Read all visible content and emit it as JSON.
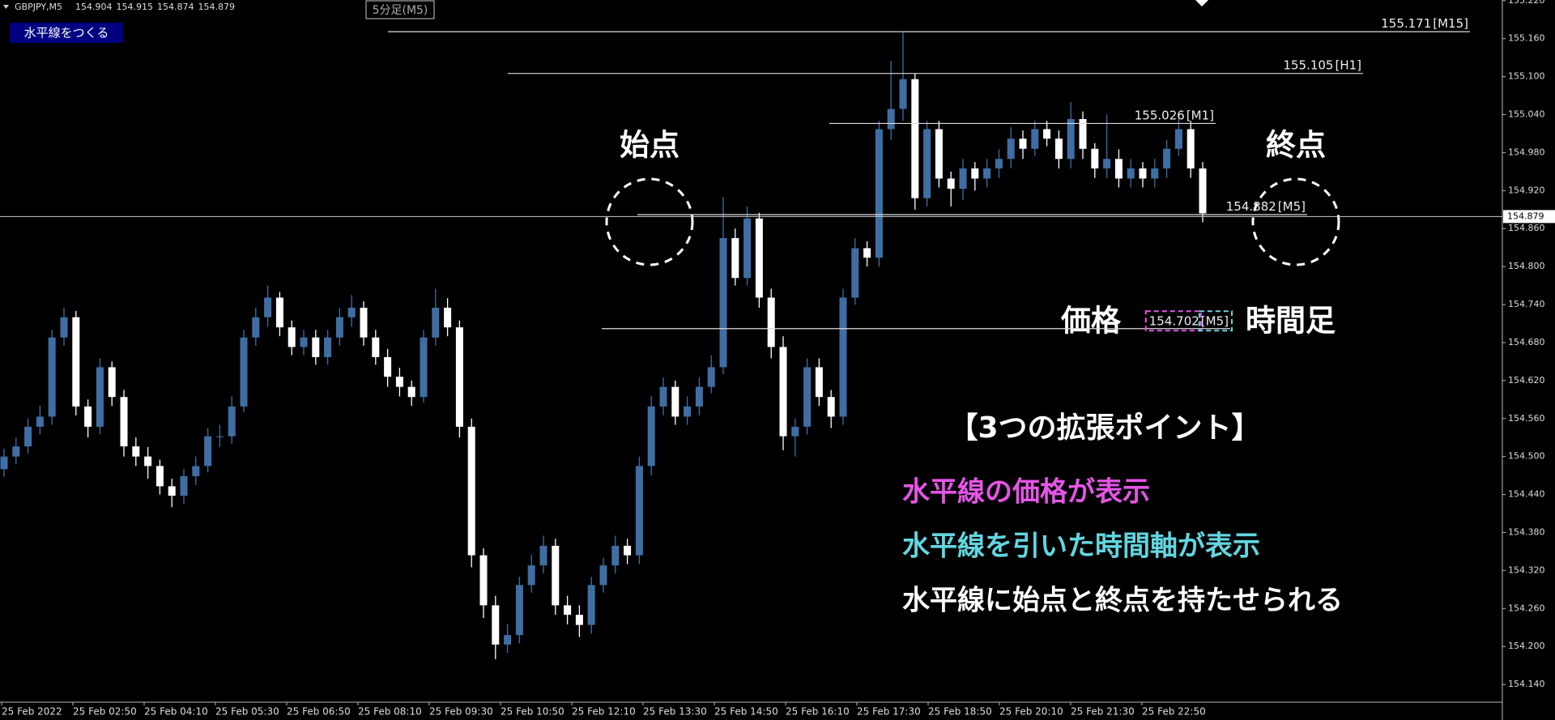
{
  "header": {
    "symbol": "GBPJPY,M5",
    "ohlc": [
      154.904,
      154.915,
      154.874,
      154.879
    ],
    "button": "水平線をつくる",
    "tag": "5分足(M5)"
  },
  "annotations": {
    "start": "始点",
    "end": "終点",
    "price": "価格",
    "timeframe": "時間足",
    "heading": "【3つの拡張ポイント】",
    "points": [
      {
        "text": "水平線の価格が表示",
        "color": "#e455e6"
      },
      {
        "text": "水平線を引いた時間軸が表示",
        "color": "#62d6e0"
      },
      {
        "text": "水平線に始点と終点を持たせられる",
        "color": "#ffffff"
      }
    ]
  },
  "chart_data": {
    "type": "candlestick",
    "up_color": "#3f6ea5",
    "down_color": "#ffffff",
    "ylim": [
      154.112,
      155.221
    ],
    "yticks": [
      {
        "value": 154.14,
        "label": "154.140"
      },
      {
        "value": 154.2,
        "label": "154.200"
      },
      {
        "value": 154.26,
        "label": "154.260"
      },
      {
        "value": 154.32,
        "label": "154.320"
      },
      {
        "value": 154.38,
        "label": "154.380"
      },
      {
        "value": 154.44,
        "label": "154.440"
      },
      {
        "value": 154.5,
        "label": "154.500"
      },
      {
        "value": 154.56,
        "label": "154.560"
      },
      {
        "value": 154.62,
        "label": "154.620"
      },
      {
        "value": 154.68,
        "label": "154.680"
      },
      {
        "value": 154.74,
        "label": "154.740"
      },
      {
        "value": 154.8,
        "label": "154.800"
      },
      {
        "value": 154.86,
        "label": "154.860"
      },
      {
        "value": 154.92,
        "label": "154.920"
      },
      {
        "value": 154.98,
        "label": "154.980"
      },
      {
        "value": 155.04,
        "label": "155.040"
      },
      {
        "value": 155.1,
        "label": "155.100"
      },
      {
        "value": 155.16,
        "label": "155.160"
      },
      {
        "value": 155.22,
        "label": "155.220"
      }
    ],
    "xlabels": [
      "25 Feb 2022",
      "25 Feb 02:50",
      "25 Feb 04:10",
      "25 Feb 05:30",
      "25 Feb 06:50",
      "25 Feb 08:10",
      "25 Feb 09:30",
      "25 Feb 10:50",
      "25 Feb 12:10",
      "25 Feb 13:30",
      "25 Feb 14:50",
      "25 Feb 16:10",
      "25 Feb 17:30",
      "25 Feb 18:50",
      "25 Feb 20:10",
      "25 Feb 21:30",
      "25 Feb 22:50"
    ],
    "current_price": 154.879,
    "hlines": [
      {
        "price": 155.171,
        "timeframe": "[M15]"
      },
      {
        "price": 155.105,
        "timeframe": "[H1]"
      },
      {
        "price": 155.026,
        "timeframe": "[M1]"
      },
      {
        "price": 154.882,
        "timeframe": "[M5]"
      },
      {
        "price": 154.702,
        "timeframe": "[M5]"
      }
    ],
    "candles": [
      [
        154.48,
        154.512,
        154.468,
        154.5
      ],
      [
        154.5,
        154.53,
        154.488,
        154.516
      ],
      [
        154.516,
        154.56,
        154.505,
        154.547
      ],
      [
        154.547,
        154.58,
        154.535,
        154.563
      ],
      [
        154.563,
        154.7,
        154.55,
        154.688
      ],
      [
        154.688,
        154.735,
        154.675,
        154.72
      ],
      [
        154.72,
        154.73,
        154.565,
        154.579
      ],
      [
        154.579,
        154.59,
        154.53,
        154.547
      ],
      [
        154.547,
        154.655,
        154.535,
        154.641
      ],
      [
        154.641,
        154.65,
        154.58,
        154.594
      ],
      [
        154.594,
        154.605,
        154.5,
        154.516
      ],
      [
        154.516,
        154.53,
        154.485,
        154.5
      ],
      [
        154.5,
        154.515,
        154.465,
        154.485
      ],
      [
        154.485,
        154.495,
        154.44,
        154.453
      ],
      [
        154.453,
        154.465,
        154.42,
        154.438
      ],
      [
        154.438,
        154.48,
        154.425,
        154.469
      ],
      [
        154.469,
        154.5,
        154.455,
        154.485
      ],
      [
        154.485,
        154.545,
        154.475,
        154.532
      ],
      [
        154.532,
        154.55,
        154.515,
        154.532
      ],
      [
        154.532,
        154.595,
        154.52,
        154.579
      ],
      [
        154.579,
        154.7,
        154.57,
        154.688
      ],
      [
        154.688,
        154.735,
        154.675,
        154.72
      ],
      [
        154.72,
        154.77,
        154.705,
        154.751
      ],
      [
        154.751,
        154.76,
        154.69,
        154.704
      ],
      [
        154.704,
        154.715,
        154.66,
        154.673
      ],
      [
        154.673,
        154.7,
        154.66,
        154.688
      ],
      [
        154.688,
        154.7,
        154.645,
        154.657
      ],
      [
        154.657,
        154.7,
        154.645,
        154.688
      ],
      [
        154.688,
        154.735,
        154.675,
        154.72
      ],
      [
        154.72,
        154.755,
        154.705,
        154.735
      ],
      [
        154.735,
        154.745,
        154.675,
        154.688
      ],
      [
        154.688,
        154.7,
        154.645,
        154.657
      ],
      [
        154.657,
        154.67,
        154.61,
        154.626
      ],
      [
        154.626,
        154.64,
        154.595,
        154.61
      ],
      [
        154.61,
        154.62,
        154.58,
        154.594
      ],
      [
        154.594,
        154.7,
        154.585,
        154.688
      ],
      [
        154.688,
        154.765,
        154.675,
        154.735
      ],
      [
        154.735,
        154.75,
        154.69,
        154.704
      ],
      [
        154.704,
        154.715,
        154.53,
        154.547
      ],
      [
        154.547,
        154.56,
        154.325,
        154.344
      ],
      [
        154.344,
        154.355,
        154.245,
        154.265
      ],
      [
        154.265,
        154.28,
        154.18,
        154.203
      ],
      [
        154.203,
        154.235,
        154.19,
        154.218
      ],
      [
        154.218,
        154.31,
        154.205,
        154.297
      ],
      [
        154.297,
        154.345,
        154.285,
        154.328
      ],
      [
        154.328,
        154.375,
        154.315,
        154.359
      ],
      [
        154.359,
        154.37,
        154.25,
        154.265
      ],
      [
        154.265,
        154.28,
        154.235,
        154.25
      ],
      [
        154.25,
        154.265,
        154.215,
        154.234
      ],
      [
        154.234,
        154.31,
        154.22,
        154.297
      ],
      [
        154.297,
        154.34,
        154.285,
        154.328
      ],
      [
        154.328,
        154.375,
        154.315,
        154.359
      ],
      [
        154.359,
        154.37,
        154.33,
        154.344
      ],
      [
        154.344,
        154.5,
        154.33,
        154.485
      ],
      [
        154.485,
        154.595,
        154.47,
        154.579
      ],
      [
        154.579,
        154.625,
        154.565,
        154.61
      ],
      [
        154.61,
        154.62,
        154.55,
        154.563
      ],
      [
        154.563,
        154.595,
        154.55,
        154.579
      ],
      [
        154.579,
        154.625,
        154.565,
        154.61
      ],
      [
        154.61,
        154.66,
        154.6,
        154.641
      ],
      [
        154.641,
        154.91,
        154.63,
        154.845
      ],
      [
        154.845,
        154.86,
        154.77,
        154.782
      ],
      [
        154.782,
        154.895,
        154.77,
        154.876
      ],
      [
        154.876,
        154.885,
        154.735,
        154.751
      ],
      [
        154.751,
        154.765,
        154.655,
        154.673
      ],
      [
        154.673,
        154.69,
        154.51,
        154.532
      ],
      [
        154.532,
        154.56,
        154.5,
        154.547
      ],
      [
        154.547,
        154.655,
        154.535,
        154.641
      ],
      [
        154.641,
        154.655,
        154.58,
        154.594
      ],
      [
        154.594,
        154.605,
        154.545,
        154.563
      ],
      [
        154.563,
        154.765,
        154.55,
        154.751
      ],
      [
        154.751,
        154.845,
        154.74,
        154.829
      ],
      [
        154.829,
        154.84,
        154.8,
        154.814
      ],
      [
        154.814,
        155.03,
        154.8,
        155.017
      ],
      [
        155.017,
        155.125,
        155.0,
        155.049
      ],
      [
        155.049,
        155.17,
        155.03,
        155.096
      ],
      [
        155.096,
        155.105,
        154.89,
        154.908
      ],
      [
        154.908,
        155.03,
        154.895,
        155.017
      ],
      [
        155.017,
        155.03,
        154.925,
        154.939
      ],
      [
        154.939,
        154.95,
        154.895,
        154.923
      ],
      [
        154.923,
        154.97,
        154.905,
        154.955
      ],
      [
        154.955,
        154.965,
        154.92,
        154.939
      ],
      [
        154.939,
        154.97,
        154.925,
        154.955
      ],
      [
        154.955,
        154.985,
        154.94,
        154.97
      ],
      [
        154.97,
        155.02,
        154.955,
        155.002
      ],
      [
        155.002,
        155.015,
        154.97,
        154.986
      ],
      [
        154.986,
        155.03,
        154.975,
        155.017
      ],
      [
        155.017,
        155.03,
        154.99,
        155.002
      ],
      [
        155.002,
        155.015,
        154.955,
        154.97
      ],
      [
        154.97,
        155.06,
        154.955,
        155.033
      ],
      [
        155.033,
        155.045,
        154.97,
        154.986
      ],
      [
        154.986,
        154.995,
        154.94,
        154.955
      ],
      [
        154.955,
        155.04,
        154.94,
        154.97
      ],
      [
        154.97,
        154.985,
        154.925,
        154.939
      ],
      [
        154.939,
        154.97,
        154.925,
        154.955
      ],
      [
        154.955,
        154.965,
        154.925,
        154.939
      ],
      [
        154.939,
        154.97,
        154.925,
        154.955
      ],
      [
        154.955,
        155.0,
        154.94,
        154.986
      ],
      [
        154.986,
        155.035,
        154.975,
        155.017
      ],
      [
        155.017,
        155.03,
        154.94,
        154.955
      ],
      [
        154.955,
        154.965,
        154.87,
        154.884
      ]
    ]
  }
}
